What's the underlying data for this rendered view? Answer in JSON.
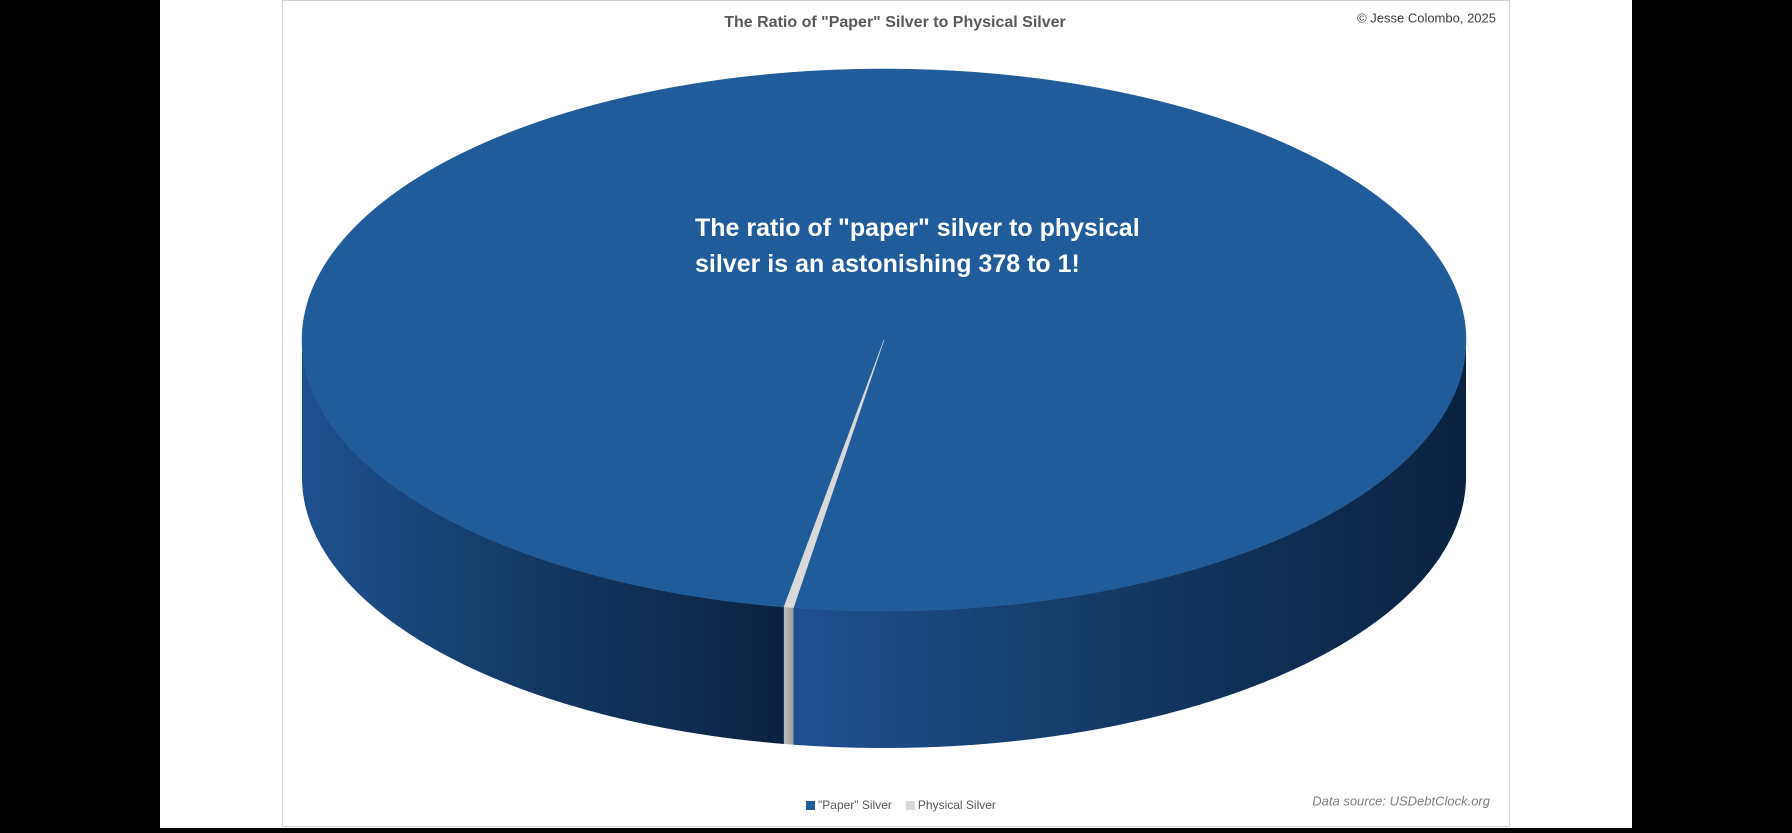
{
  "chart_data": {
    "type": "pie",
    "title": "The Ratio of \"Paper\" Silver to Physical Silver",
    "credit": "© Jesse Colombo, 2025",
    "annotation": "The ratio of \"paper\" silver to physical silver is an astonishing 378 to 1!",
    "source": "Data source: USDebtClock.org",
    "categories": [
      "\"Paper\" Silver",
      "Physical Silver"
    ],
    "values": [
      378,
      1
    ],
    "colors": [
      "#1f5c99",
      "#d9d9d9"
    ],
    "legend": "bottom"
  }
}
